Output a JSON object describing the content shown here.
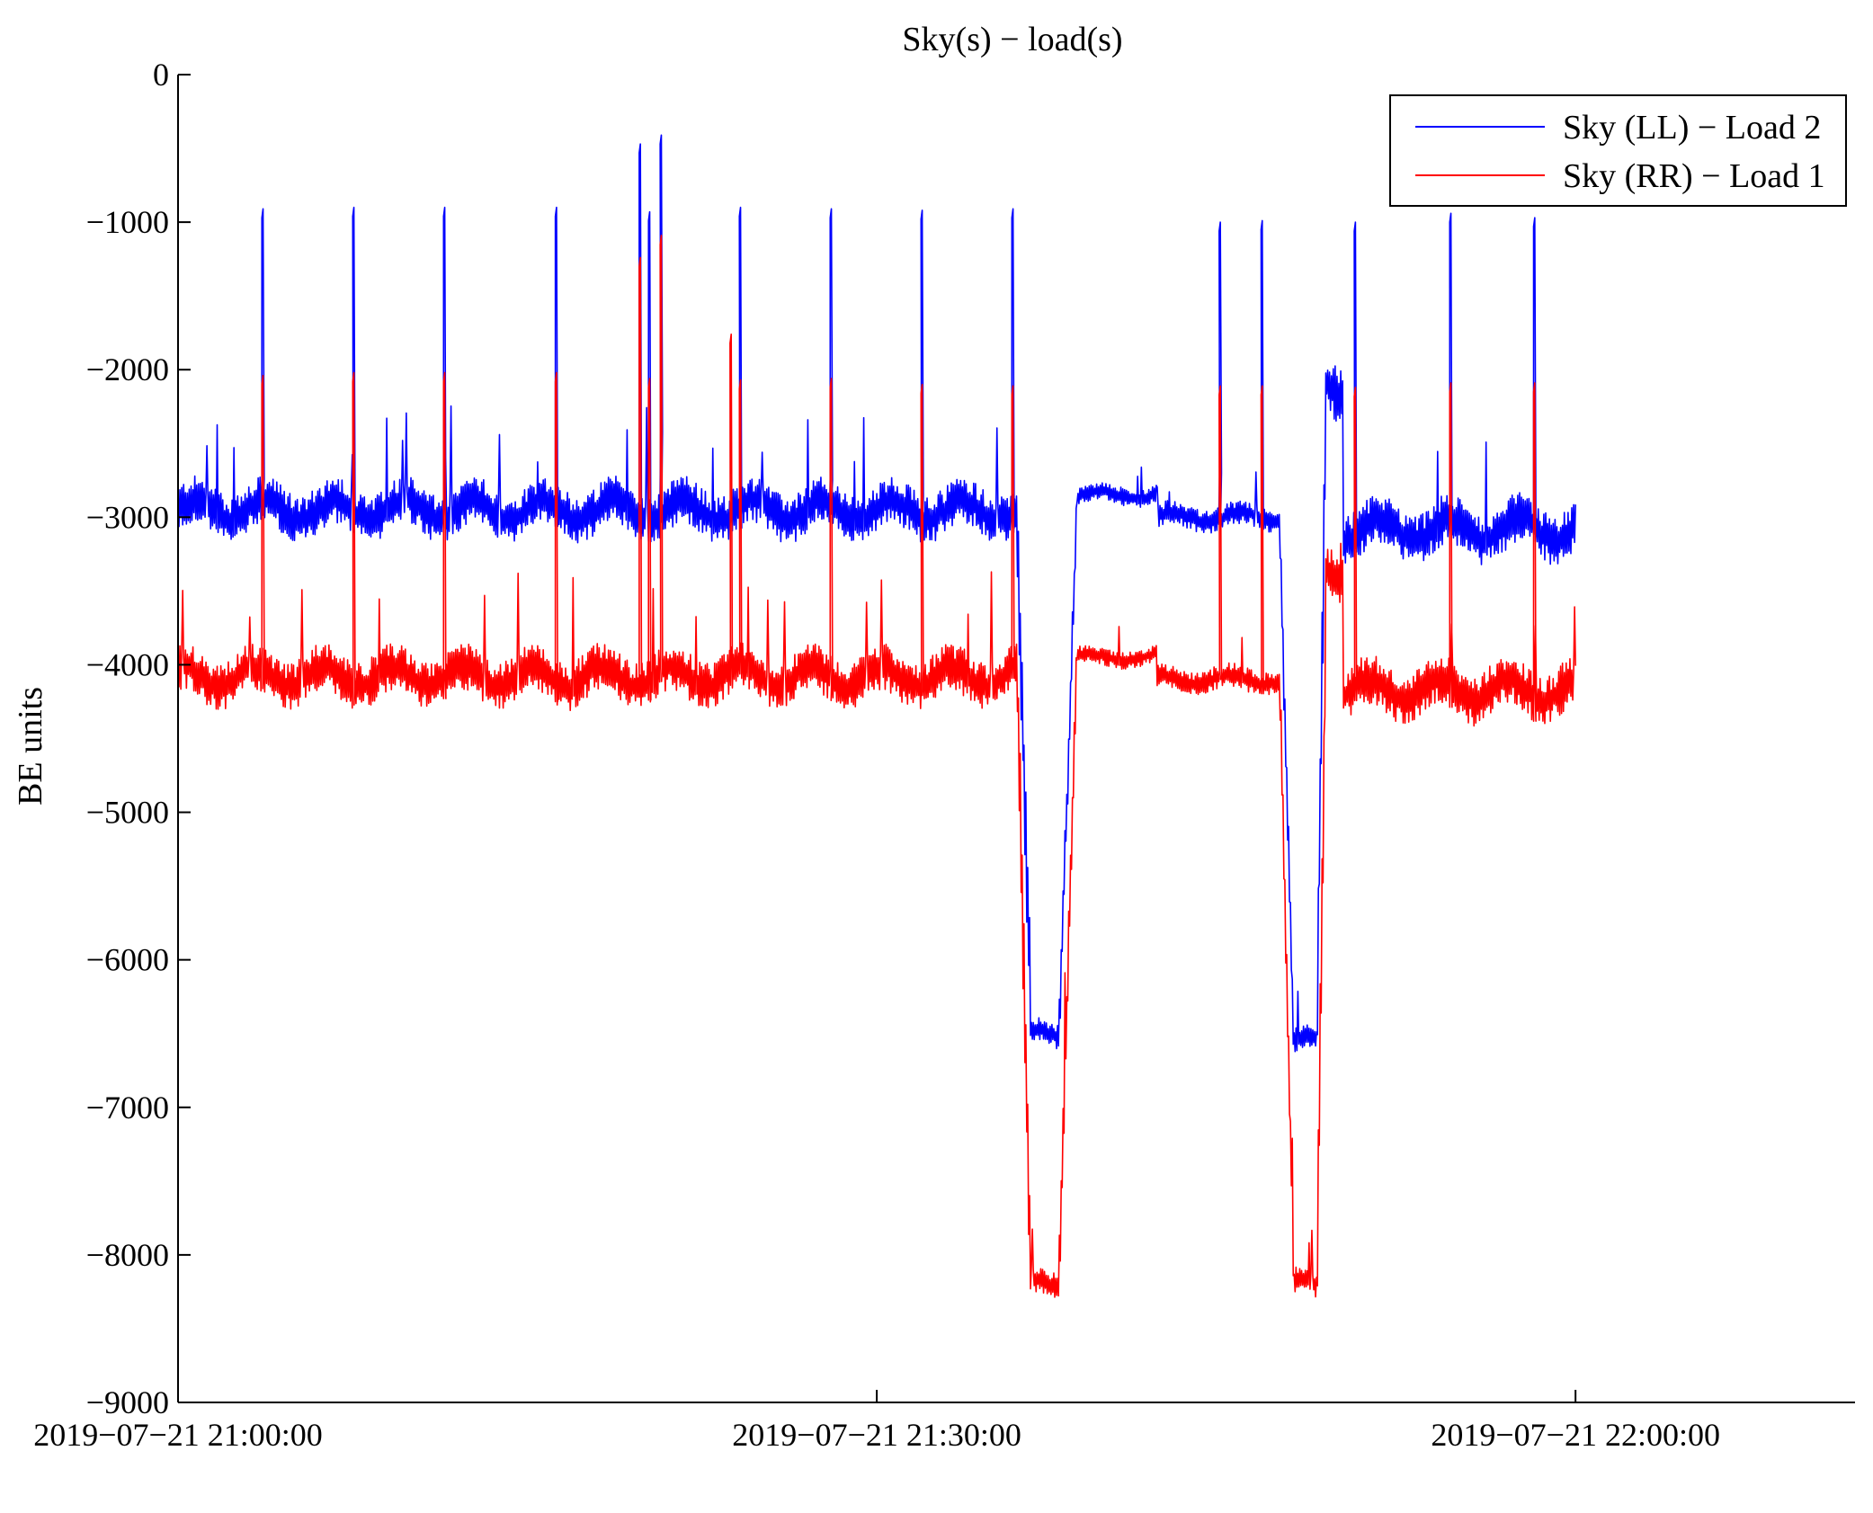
{
  "chart_data": {
    "type": "line",
    "title": "Sky(s) − load(s)",
    "xlabel": "",
    "ylabel": "BE units",
    "x_unit": "minutes after 2019-07-21 21:00:00",
    "xlim": [
      0,
      72
    ],
    "ylim": [
      -9000,
      0
    ],
    "x_ticks": [
      {
        "value": 0,
        "label": "2019−07−21 21:00:00"
      },
      {
        "value": 30,
        "label": "2019−07−21 21:30:00"
      },
      {
        "value": 60,
        "label": "2019−07−21 22:00:00"
      }
    ],
    "y_ticks": [
      {
        "value": 0,
        "label": "0"
      },
      {
        "value": -1000,
        "label": "−1000"
      },
      {
        "value": -2000,
        "label": "−2000"
      },
      {
        "value": -3000,
        "label": "−3000"
      },
      {
        "value": -4000,
        "label": "−4000"
      },
      {
        "value": -5000,
        "label": "−5000"
      },
      {
        "value": -6000,
        "label": "−6000"
      },
      {
        "value": -7000,
        "label": "−7000"
      },
      {
        "value": -8000,
        "label": "−8000"
      },
      {
        "value": -9000,
        "label": "−9000"
      }
    ],
    "grid": false,
    "legend_position": "top-right",
    "x_range_of_data": [
      0,
      60
    ],
    "series": [
      {
        "name": "Sky (LL) − Load 2",
        "color": "#0000ff",
        "baseline_segments": [
          {
            "x0": 0,
            "x1": 36,
            "level": -2950,
            "noise": 160
          },
          {
            "x0": 36.6,
            "x1": 37.8,
            "level": -6500,
            "noise": 80
          },
          {
            "x0": 38.6,
            "x1": 42,
            "level": -2850,
            "noise": 60
          },
          {
            "x0": 42,
            "x1": 47.3,
            "level": -3000,
            "noise": 80
          },
          {
            "x0": 47.9,
            "x1": 48.9,
            "level": -6550,
            "noise": 80
          },
          {
            "x0": 49.3,
            "x1": 50,
            "level": -2100,
            "noise": 200
          },
          {
            "x0": 50,
            "x1": 60,
            "level": -3080,
            "noise": 170
          }
        ],
        "spikes": [
          {
            "x": 3.6,
            "y": -970
          },
          {
            "x": 7.5,
            "y": -960
          },
          {
            "x": 11.4,
            "y": -960
          },
          {
            "x": 16.2,
            "y": -960
          },
          {
            "x": 19.8,
            "y": -530
          },
          {
            "x": 20.2,
            "y": -990
          },
          {
            "x": 20.7,
            "y": -470
          },
          {
            "x": 24.1,
            "y": -960
          },
          {
            "x": 28,
            "y": -970
          },
          {
            "x": 31.9,
            "y": -980
          },
          {
            "x": 35.8,
            "y": -970
          },
          {
            "x": 44.7,
            "y": -1060
          },
          {
            "x": 46.5,
            "y": -1050
          },
          {
            "x": 50.5,
            "y": -1060
          },
          {
            "x": 54.6,
            "y": -1000
          },
          {
            "x": 58.2,
            "y": -1030
          }
        ]
      },
      {
        "name": "Sky (RR) − Load 1",
        "color": "#ff0000",
        "baseline_segments": [
          {
            "x0": 0,
            "x1": 36,
            "level": -4080,
            "noise": 160
          },
          {
            "x0": 36.6,
            "x1": 37.8,
            "level": -8170,
            "noise": 90
          },
          {
            "x0": 38.6,
            "x1": 42,
            "level": -3950,
            "noise": 60
          },
          {
            "x0": 42,
            "x1": 47.3,
            "level": -4100,
            "noise": 80
          },
          {
            "x0": 47.9,
            "x1": 48.9,
            "level": -8200,
            "noise": 90
          },
          {
            "x0": 49.3,
            "x1": 50,
            "level": -3300,
            "noise": 200
          },
          {
            "x0": 50,
            "x1": 60,
            "level": -4170,
            "noise": 170
          }
        ],
        "spikes": [
          {
            "x": 3.6,
            "y": -2100
          },
          {
            "x": 7.5,
            "y": -2080
          },
          {
            "x": 11.4,
            "y": -2080
          },
          {
            "x": 16.2,
            "y": -2080
          },
          {
            "x": 19.8,
            "y": -1300
          },
          {
            "x": 20.2,
            "y": -2120
          },
          {
            "x": 20.7,
            "y": -1150
          },
          {
            "x": 23.7,
            "y": -1820
          },
          {
            "x": 24.1,
            "y": -2130
          },
          {
            "x": 28,
            "y": -2120
          },
          {
            "x": 31.9,
            "y": -2160
          },
          {
            "x": 35.8,
            "y": -2170
          },
          {
            "x": 44.7,
            "y": -2170
          },
          {
            "x": 46.5,
            "y": -2170
          },
          {
            "x": 50.5,
            "y": -2180
          },
          {
            "x": 54.6,
            "y": -2150
          },
          {
            "x": 58.2,
            "y": -2150
          }
        ]
      }
    ]
  }
}
